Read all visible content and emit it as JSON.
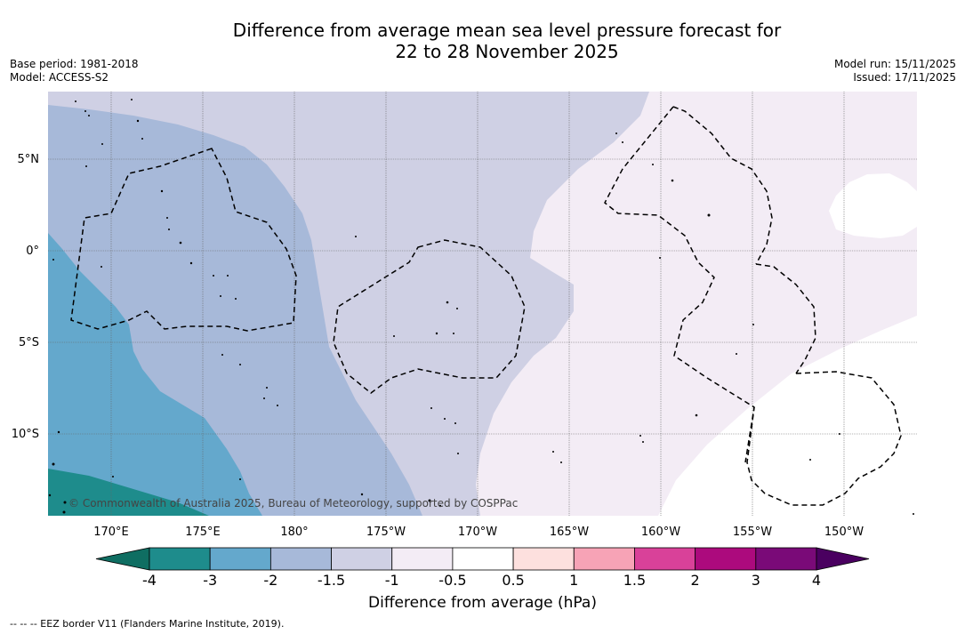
{
  "title_line1": "Difference from average mean sea level pressure forecast for",
  "title_line2": "22 to 28 November 2025",
  "base_period": "Base period: 1981-2018",
  "model": "Model: ACCESS-S2",
  "model_run": "Model run: 15/11/2025",
  "issued": "Issued: 17/11/2025",
  "copyright": "© Commonwealth of Australia 2025, Bureau of Meteorology, supported by COSPPac",
  "lat_labels": [
    "5°N",
    "0°",
    "5°S",
    "10°S"
  ],
  "lon_labels": [
    "170°E",
    "175°E",
    "180°",
    "175°W",
    "170°W",
    "165°W",
    "160°W",
    "155°W",
    "150°W"
  ],
  "colorbar": {
    "ticks": [
      "-4",
      "-3",
      "-2",
      "-1.5",
      "-1",
      "-0.5",
      "0.5",
      "1",
      "1.5",
      "2",
      "3",
      "4"
    ],
    "colors": [
      "#1e8c8c",
      "#64a8cc",
      "#a7b9d9",
      "#cfd0e4",
      "#f3ecf5",
      "#ffffff",
      "#fde0de",
      "#f7a3b6",
      "#d94199",
      "#ac0a7d",
      "#7a0a78"
    ],
    "under_color": "#0f6e62",
    "over_color": "#4a0060"
  },
  "colorbar_title": "Difference from average (hPa)",
  "footnote": "--  --  -- EEZ border V11 (Flanders Marine Institute, 2019).",
  "colors": {
    "band_minus3": "#1e8c8c",
    "band_minus2": "#64a8cc",
    "band_minus1_5": "#a7b9d9",
    "band_minus1": "#cfd0e4",
    "band_minus0_5": "#f3ecf5",
    "band_zero": "#ffffff"
  }
}
